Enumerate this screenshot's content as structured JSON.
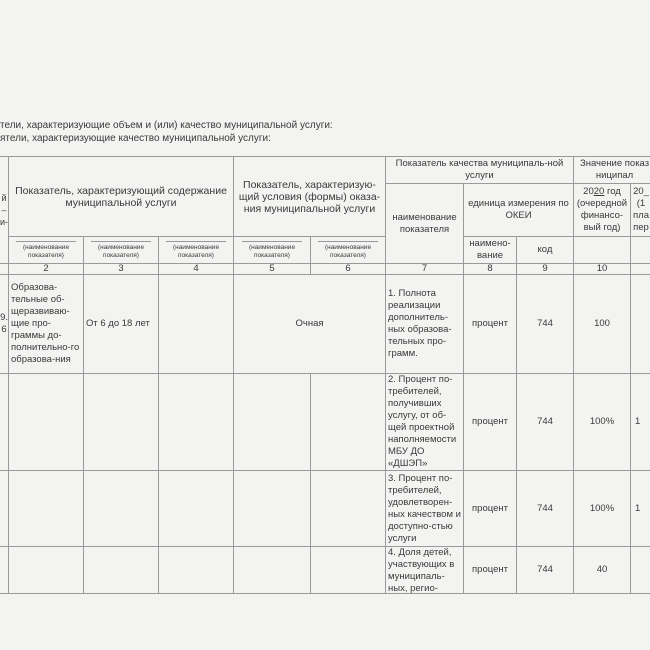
{
  "intro_lines": [
    "тели, характеризующие объем и (или) качество муниципальной услуги:",
    "ятели, характеризующие качество муниципальной услуги:"
  ],
  "header": {
    "col1_fragment": "й\n–\nи-",
    "content_group": "Показатель, характеризующий содержание муниципальной услуги",
    "conditions_group": "Показатель, характеризую-щий условия (формы) оказа-ния муниципальной услуги",
    "quality_group": "Показатель качества муниципаль-ной услуги",
    "value_group": "Значение показ\nниципал",
    "indicator_name": "наименование показателя",
    "okei_unit": "единица измерения по ОКЕИ",
    "okei_name": "наимено-вание",
    "okei_code": "код",
    "year1": "20",
    "year1_value": "20",
    "year1_suffix": " год (очередной финансо-вый год)",
    "year2_fragment": "20_\n(1\nпла\nпер",
    "sub_label": "(наименование показателя)"
  },
  "col_numbers": [
    "2",
    "3",
    "4",
    "5",
    "6",
    "7",
    "8",
    "9",
    "10"
  ],
  "rows": [
    {
      "c1": "9.\n6",
      "c2": "Образова-тельные об-щеразвиваю-щие про-граммы до-полнительно-го образова-ния",
      "c3": "От 6 до 18 лет",
      "c5": "Очная",
      "name": "1. Полнота реализации дополнитель-ных образова-тельных про-грамм.",
      "unit": "процент",
      "code": "744",
      "v10": "100",
      "v11": ""
    },
    {
      "name": "2. Процент по-требителей, получивших услугу, от об-щей проектной наполняемости МБУ ДО «ДШЭП»",
      "unit": "процент",
      "code": "744",
      "v10": "100%",
      "v11": "1"
    },
    {
      "name": "3. Процент по-требителей, удовлетворен-ных качеством и доступно-стью услуги",
      "unit": "процент",
      "code": "744",
      "v10": "100%",
      "v11": "1"
    },
    {
      "name": "4. Доля детей, участвующих в муниципаль-ных, регио-",
      "unit": "процент",
      "code": "744",
      "v10": "40",
      "v11": ""
    }
  ]
}
